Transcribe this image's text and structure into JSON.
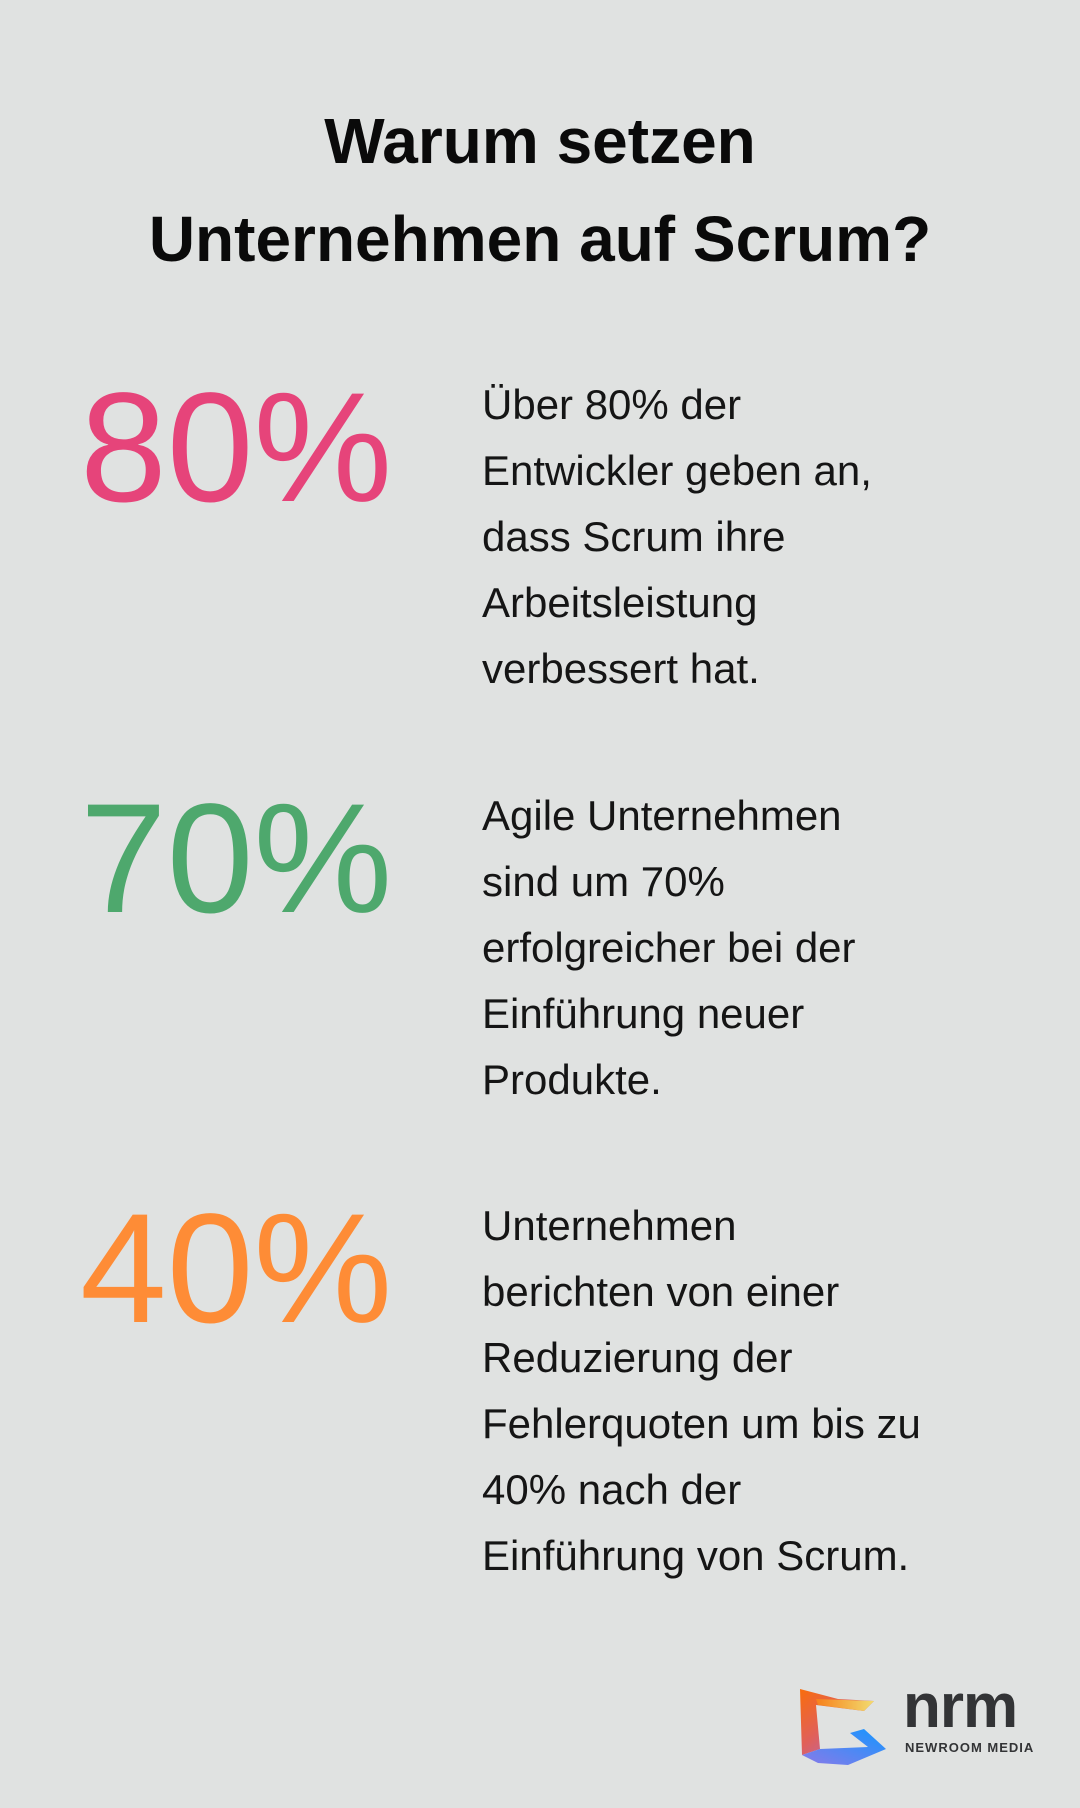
{
  "title": {
    "lines": [
      "Warum setzen",
      "Unternehmen auf Scrum?"
    ]
  },
  "stats": [
    {
      "value": "80%",
      "color": "#e6447a",
      "lines": [
        "Über 80% der",
        "Entwickler geben an,",
        "dass Scrum ihre",
        "Arbeitsleistung",
        "verbessert hat."
      ]
    },
    {
      "value": "70%",
      "color": "#4ea86d",
      "lines": [
        "Agile Unternehmen",
        "sind um 70%",
        "erfolgreicher bei der",
        "Einführung neuer",
        "Produkte."
      ]
    },
    {
      "value": "40%",
      "color": "#fe8c36",
      "lines": [
        "Unternehmen",
        "berichten von einer",
        "Reduzierung der",
        "Fehlerquoten um bis zu",
        "40% nach der",
        "Einführung von Scrum."
      ]
    }
  ],
  "logo": {
    "word": "nrm",
    "subtitle": "NEWROOM MEDIA"
  },
  "colors": {
    "background": "#e0e2e1",
    "text": "#111111"
  }
}
